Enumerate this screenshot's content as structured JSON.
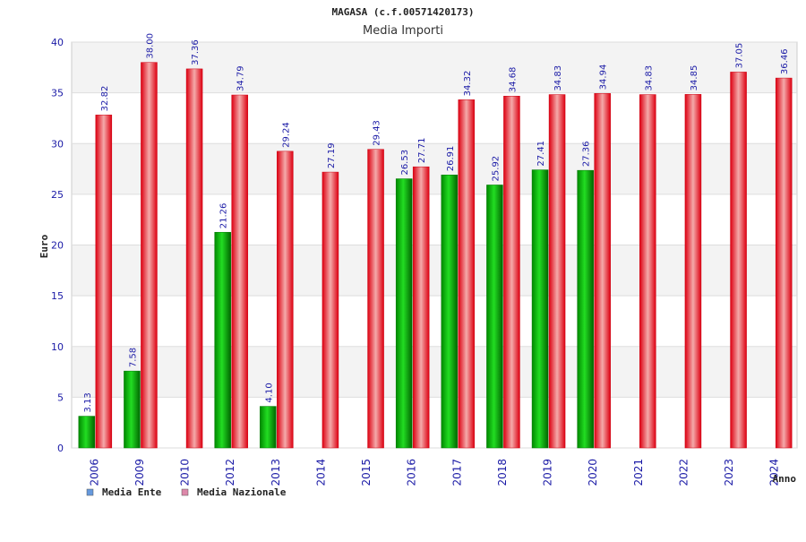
{
  "chart_data": {
    "type": "bar",
    "title": "MAGASA (c.f.00571420173)",
    "subtitle": "Media Importi",
    "xlabel": "Anno",
    "ylabel": "Euro",
    "ylim": [
      0,
      40
    ],
    "yticks": [
      0,
      5,
      10,
      15,
      20,
      25,
      30,
      35,
      40
    ],
    "grid": true,
    "legend_position": "bottom-left",
    "categories": [
      "2006",
      "2009",
      "2010",
      "2012",
      "2013",
      "2014",
      "2015",
      "2016",
      "2017",
      "2018",
      "2019",
      "2020",
      "2021",
      "2022",
      "2023",
      "2024"
    ],
    "series": [
      {
        "name": "Media Ente",
        "legend_color": "#6699dd",
        "bar_color": "#00bb00",
        "values": [
          3.13,
          7.58,
          null,
          21.26,
          4.1,
          null,
          null,
          26.53,
          26.91,
          25.92,
          27.41,
          27.36,
          null,
          null,
          null,
          null
        ],
        "labels": [
          "3.13",
          "7.58",
          null,
          "21.26",
          "4.10",
          null,
          null,
          "26.53",
          "26.91",
          "25.92",
          "27.41",
          "27.36",
          null,
          null,
          null,
          null
        ]
      },
      {
        "name": "Media Nazionale",
        "legend_color": "#dd88aa",
        "bar_color": "#ee1122",
        "values": [
          32.82,
          38.0,
          37.36,
          34.79,
          29.24,
          27.19,
          29.43,
          27.71,
          34.32,
          34.68,
          34.83,
          34.94,
          34.83,
          34.85,
          37.05,
          36.46
        ],
        "labels": [
          "32.82",
          "38.00",
          "37.36",
          "34.79",
          "29.24",
          "27.19",
          "29.43",
          "27.71",
          "34.32",
          "34.68",
          "34.83",
          "34.94",
          "34.83",
          "34.85",
          "37.05",
          "36.46"
        ]
      }
    ]
  }
}
